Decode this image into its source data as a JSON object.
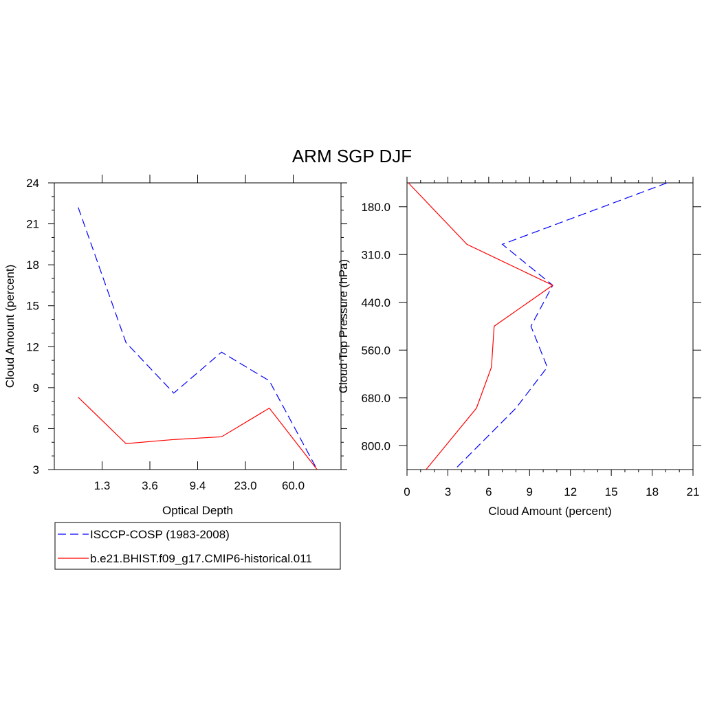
{
  "title": "ARM SGP DJF",
  "chart_data": [
    {
      "type": "line",
      "xlabel": "Optical Depth",
      "ylabel": "Cloud Amount (percent)",
      "xtick_labels": [
        "1.3",
        "3.6",
        "9.4",
        "23.0",
        "60.0"
      ],
      "ylim": [
        3,
        24
      ],
      "yticks": [
        3,
        6,
        9,
        12,
        15,
        18,
        21,
        24
      ],
      "x_bins": 6,
      "series": [
        {
          "name": "ISCCP-COSP (1983-2008)",
          "color": "#0000ff",
          "dash": "dashed",
          "values": [
            22.2,
            12.3,
            8.6,
            11.6,
            9.5,
            3.0
          ]
        },
        {
          "name": "b.e21.BHIST.f09_g17.CMIP6-historical.011",
          "color": "#ff0000",
          "dash": "solid",
          "values": [
            8.3,
            4.9,
            5.2,
            5.4,
            7.5,
            3.0
          ]
        }
      ]
    },
    {
      "type": "line",
      "xlabel": "Cloud Amount (percent)",
      "ylabel": "Cloud Top Pressure (hPa)",
      "xlim": [
        0,
        21
      ],
      "xticks": [
        0,
        3,
        6,
        9,
        12,
        15,
        18,
        21
      ],
      "ytick_labels": [
        "180.0",
        "310.0",
        "440.0",
        "560.0",
        "680.0",
        "800.0"
      ],
      "y_bins": 7,
      "series": [
        {
          "name": "ISCCP-COSP (1983-2008)",
          "color": "#0000ff",
          "dash": "dashed",
          "values": [
            19.1,
            7.0,
            10.7,
            9.1,
            10.3,
            8.0,
            3.5
          ]
        },
        {
          "name": "b.e21.BHIST.f09_g17.CMIP6-historical.011",
          "color": "#ff0000",
          "dash": "solid",
          "values": [
            0.1,
            4.4,
            10.7,
            6.4,
            6.2,
            5.1,
            1.4
          ]
        }
      ]
    }
  ],
  "legend": {
    "entries": [
      {
        "label": "ISCCP-COSP (1983-2008)",
        "color": "#0000ff",
        "dash": "dashed"
      },
      {
        "label": "b.e21.BHIST.f09_g17.CMIP6-historical.011",
        "color": "#ff0000",
        "dash": "solid"
      }
    ]
  }
}
